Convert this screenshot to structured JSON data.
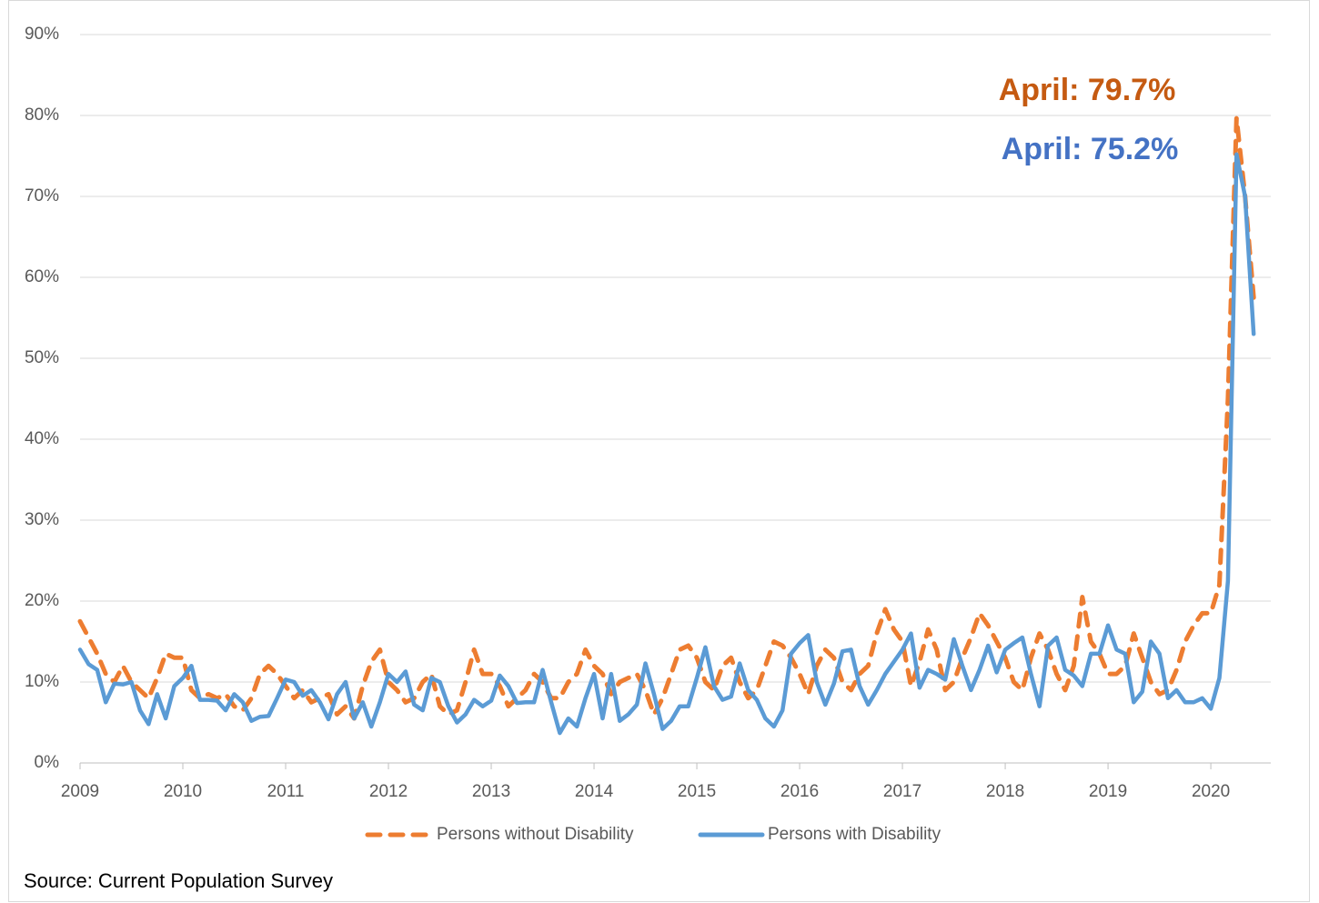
{
  "chart_data": {
    "type": "line",
    "categories": [
      "2009",
      null,
      null,
      null,
      null,
      null,
      null,
      null,
      null,
      null,
      null,
      null,
      "2010",
      null,
      null,
      null,
      null,
      null,
      null,
      null,
      null,
      null,
      null,
      null,
      "2011",
      null,
      null,
      null,
      null,
      null,
      null,
      null,
      null,
      null,
      null,
      null,
      "2012",
      null,
      null,
      null,
      null,
      null,
      null,
      null,
      null,
      null,
      null,
      null,
      "2013",
      null,
      null,
      null,
      null,
      null,
      null,
      null,
      null,
      null,
      null,
      null,
      "2014",
      null,
      null,
      null,
      null,
      null,
      null,
      null,
      null,
      null,
      null,
      null,
      "2015",
      null,
      null,
      null,
      null,
      null,
      null,
      null,
      null,
      null,
      null,
      null,
      "2016",
      null,
      null,
      null,
      null,
      null,
      null,
      null,
      null,
      null,
      null,
      null,
      "2017",
      null,
      null,
      null,
      null,
      null,
      null,
      null,
      null,
      null,
      null,
      null,
      "2018",
      null,
      null,
      null,
      null,
      null,
      null,
      null,
      null,
      null,
      null,
      null,
      "2019",
      null,
      null,
      null,
      null,
      null,
      null,
      null,
      null,
      null,
      null,
      null,
      "2020",
      null,
      null,
      null,
      null,
      null
    ],
    "series": [
      {
        "name": "Persons without Disability",
        "color": "#ed7d31",
        "dashed": true,
        "values": [
          17.5,
          15.5,
          13.5,
          11,
          10,
          12,
          10,
          9,
          8,
          10.5,
          13.5,
          13,
          13,
          9,
          8,
          8.5,
          8,
          8.5,
          7,
          6.5,
          8,
          11,
          12,
          11,
          9.5,
          8,
          9,
          7.5,
          8,
          8.5,
          6,
          7,
          5.5,
          9.5,
          12.5,
          14,
          10,
          9,
          7.5,
          8,
          10,
          11,
          7,
          6,
          6.5,
          10,
          14,
          11,
          11,
          9.5,
          7,
          8,
          9,
          11,
          10,
          8,
          8,
          10,
          11,
          14,
          12,
          11,
          8.5,
          10,
          10.5,
          11,
          9,
          6,
          8,
          11,
          14,
          14.5,
          13,
          10,
          9,
          12,
          13,
          10,
          8,
          9,
          12,
          15,
          14.5,
          13,
          11,
          8.5,
          12,
          14,
          13,
          10,
          9,
          11,
          12,
          16,
          19,
          16.5,
          15,
          9.5,
          12.5,
          16.5,
          14,
          9,
          10,
          13,
          15.5,
          18.5,
          17,
          15,
          13,
          10,
          9,
          13,
          16,
          14,
          11,
          9,
          12,
          20.5,
          15,
          13.5,
          11,
          11,
          12,
          16,
          13,
          10,
          8.5,
          9,
          11.5,
          15,
          17,
          18.5,
          18.5,
          22,
          45,
          79.7,
          70,
          57.5
        ]
      },
      {
        "name": "Persons with Disability",
        "color": "#5b9bd5",
        "dashed": false,
        "values": [
          14,
          12.2,
          11.5,
          7.5,
          9.8,
          9.7,
          10,
          6.5,
          4.8,
          8.5,
          5.5,
          9.5,
          10.5,
          12,
          7.8,
          7.8,
          7.7,
          6.5,
          8.5,
          7.5,
          5.2,
          5.7,
          5.8,
          8,
          10.3,
          10,
          8.3,
          9,
          7.5,
          5.4,
          8.5,
          10,
          5.5,
          7.5,
          4.5,
          7.5,
          11,
          10,
          11.3,
          7.2,
          6.5,
          10.5,
          10,
          7,
          5,
          6,
          7.8,
          7,
          7.7,
          10.8,
          9.5,
          7.4,
          7.5,
          7.5,
          11.5,
          7.5,
          3.7,
          5.5,
          4.5,
          8,
          11,
          5.5,
          11,
          5.2,
          6,
          7.2,
          12.3,
          8.5,
          4.2,
          5.2,
          7,
          7,
          10.5,
          14.3,
          9.5,
          7.8,
          8.2,
          12.3,
          9,
          7.8,
          5.5,
          4.5,
          6.5,
          13.5,
          14.8,
          15.8,
          10,
          7.2,
          9.8,
          13.8,
          14,
          9.5,
          7.2,
          9,
          11,
          12.5,
          14,
          16,
          9.3,
          11.5,
          11,
          10.3,
          15.3,
          12,
          9,
          11.5,
          14.5,
          11.2,
          14,
          14.8,
          15.5,
          11,
          7,
          14.5,
          15.5,
          11.5,
          10.8,
          9.5,
          13.5,
          13.5,
          17,
          14,
          13.5,
          7.5,
          8.8,
          15,
          13.5,
          8,
          9,
          7.5,
          7.5,
          8,
          6.7,
          10.5,
          22.5,
          75.2,
          70,
          53
        ]
      }
    ],
    "ylim": [
      0,
      90
    ],
    "yticks": [
      {
        "value": 0,
        "label": "0%"
      },
      {
        "value": 10,
        "label": "10%"
      },
      {
        "value": 20,
        "label": "20%"
      },
      {
        "value": 30,
        "label": "30%"
      },
      {
        "value": 40,
        "label": "40%"
      },
      {
        "value": 50,
        "label": "50%"
      },
      {
        "value": 60,
        "label": "60%"
      },
      {
        "value": 70,
        "label": "70%"
      },
      {
        "value": 80,
        "label": "80%"
      },
      {
        "value": 90,
        "label": "90%"
      }
    ],
    "grid": true,
    "legend": "bottom",
    "annotations": [
      {
        "text": "April: 79.7%",
        "color": "#c55a11"
      },
      {
        "text": "April: 75.2%",
        "color": "#4472c4"
      }
    ],
    "source": "Source: Current Population Survey"
  }
}
